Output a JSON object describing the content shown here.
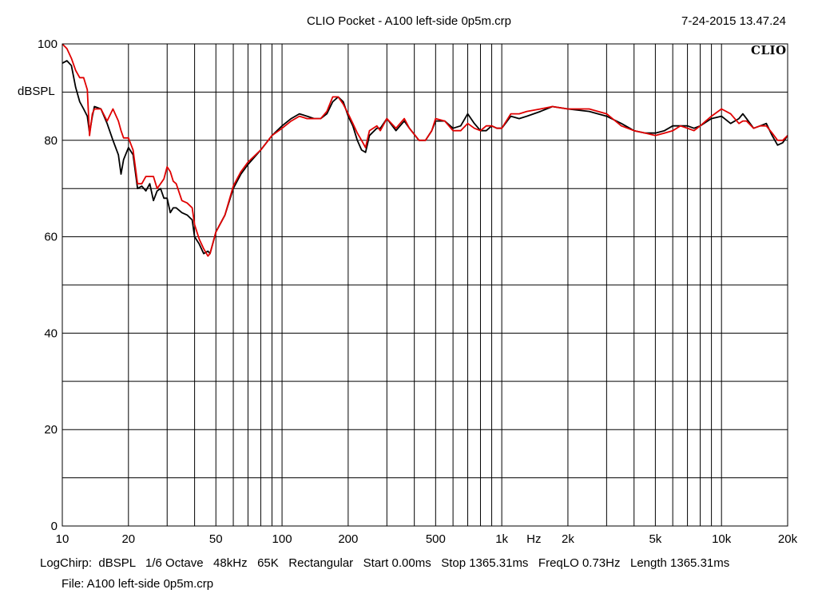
{
  "header": {
    "title": "CLIO Pocket - A100 left-side 0p5m.crp",
    "timestamp": "7-24-2015 13.47.24",
    "brand": "CLIO"
  },
  "footer": {
    "settings": "LogChirp:  dBSPL   1/6 Octave   48kHz   65K   Rectangular   Start 0.00ms   Stop 1365.31ms   FreqLO 0.73Hz   Length 1365.31ms",
    "file": "File: A100 left-side 0p5m.crp"
  },
  "colors": {
    "black_series": "#000000",
    "red_series": "#e00000",
    "grid": "#000000"
  },
  "chart_data": {
    "type": "line",
    "xscale": "log",
    "xlim": [
      10,
      20000
    ],
    "ylim": [
      0,
      100
    ],
    "ylabel": "dBSPL",
    "xlabel": "Hz",
    "grid": true,
    "x_ticks": [
      {
        "v": 10,
        "label": "10"
      },
      {
        "v": 20,
        "label": "20"
      },
      {
        "v": 50,
        "label": "50"
      },
      {
        "v": 100,
        "label": "100"
      },
      {
        "v": 200,
        "label": "200"
      },
      {
        "v": 500,
        "label": "500"
      },
      {
        "v": 1000,
        "label": "1k"
      },
      {
        "v": 2000,
        "label": "2k"
      },
      {
        "v": 5000,
        "label": "5k"
      },
      {
        "v": 10000,
        "label": "10k"
      },
      {
        "v": 20000,
        "label": "20k"
      }
    ],
    "y_ticks": [
      {
        "v": 0,
        "label": "0"
      },
      {
        "v": 20,
        "label": "20"
      },
      {
        "v": 40,
        "label": "40"
      },
      {
        "v": 60,
        "label": "60"
      },
      {
        "v": 80,
        "label": "80"
      },
      {
        "v": 100,
        "label": "100"
      }
    ],
    "series": [
      {
        "color": "#000000",
        "points": [
          [
            10,
            96
          ],
          [
            10.5,
            96.5
          ],
          [
            11,
            95.5
          ],
          [
            11.5,
            91
          ],
          [
            12,
            88
          ],
          [
            12.5,
            86.5
          ],
          [
            13,
            85
          ],
          [
            13.3,
            81.5
          ],
          [
            13.7,
            85
          ],
          [
            14,
            87
          ],
          [
            15,
            86.5
          ],
          [
            16,
            83.5
          ],
          [
            17,
            80
          ],
          [
            18,
            77
          ],
          [
            18.5,
            73
          ],
          [
            19,
            76
          ],
          [
            20,
            78.5
          ],
          [
            21,
            77
          ],
          [
            22,
            70
          ],
          [
            23,
            70.5
          ],
          [
            24,
            69.5
          ],
          [
            25,
            71
          ],
          [
            26,
            67.5
          ],
          [
            27,
            69.5
          ],
          [
            28,
            70
          ],
          [
            29,
            68
          ],
          [
            30,
            68
          ],
          [
            31,
            65
          ],
          [
            32,
            66
          ],
          [
            33,
            66
          ],
          [
            35,
            65
          ],
          [
            37,
            64.5
          ],
          [
            39,
            63.5
          ],
          [
            40,
            60
          ],
          [
            42,
            58.5
          ],
          [
            44,
            56.5
          ],
          [
            46,
            57
          ],
          [
            47,
            56.5
          ],
          [
            48,
            58
          ],
          [
            50,
            61
          ],
          [
            55,
            64.5
          ],
          [
            60,
            70
          ],
          [
            65,
            73
          ],
          [
            70,
            75
          ],
          [
            80,
            78
          ],
          [
            90,
            81
          ],
          [
            100,
            83
          ],
          [
            110,
            84.5
          ],
          [
            120,
            85.5
          ],
          [
            130,
            85
          ],
          [
            140,
            84.5
          ],
          [
            150,
            84.5
          ],
          [
            160,
            85.5
          ],
          [
            170,
            88
          ],
          [
            180,
            89
          ],
          [
            190,
            88
          ],
          [
            200,
            85
          ],
          [
            210,
            83
          ],
          [
            220,
            80
          ],
          [
            230,
            78
          ],
          [
            240,
            77.5
          ],
          [
            250,
            81
          ],
          [
            270,
            82.5
          ],
          [
            280,
            82.5
          ],
          [
            300,
            84.5
          ],
          [
            330,
            82
          ],
          [
            360,
            84
          ],
          [
            380,
            82.5
          ],
          [
            420,
            80
          ],
          [
            450,
            80
          ],
          [
            480,
            82
          ],
          [
            500,
            84
          ],
          [
            550,
            84
          ],
          [
            600,
            82.5
          ],
          [
            650,
            83
          ],
          [
            700,
            85.5
          ],
          [
            750,
            83.5
          ],
          [
            800,
            82
          ],
          [
            850,
            82
          ],
          [
            900,
            83
          ],
          [
            950,
            82.5
          ],
          [
            1000,
            82.5
          ],
          [
            1100,
            85
          ],
          [
            1200,
            84.5
          ],
          [
            1300,
            85
          ],
          [
            1500,
            86
          ],
          [
            1700,
            87
          ],
          [
            2000,
            86.5
          ],
          [
            2500,
            86
          ],
          [
            3000,
            85
          ],
          [
            3500,
            83.5
          ],
          [
            4000,
            82
          ],
          [
            4500,
            81.5
          ],
          [
            5000,
            81.5
          ],
          [
            5500,
            82
          ],
          [
            6000,
            83
          ],
          [
            6500,
            83
          ],
          [
            7000,
            83
          ],
          [
            7500,
            82.5
          ],
          [
            8000,
            83
          ],
          [
            9000,
            84.5
          ],
          [
            10000,
            85
          ],
          [
            11000,
            83.5
          ],
          [
            12000,
            84.5
          ],
          [
            12500,
            85.5
          ],
          [
            13000,
            84.5
          ],
          [
            14000,
            82.5
          ],
          [
            15000,
            83
          ],
          [
            16000,
            83.5
          ],
          [
            17000,
            81
          ],
          [
            18000,
            79
          ],
          [
            19000,
            79.5
          ],
          [
            20000,
            81
          ]
        ]
      },
      {
        "color": "#e00000",
        "points": [
          [
            10,
            100
          ],
          [
            10.5,
            99
          ],
          [
            11,
            97
          ],
          [
            11.5,
            94.5
          ],
          [
            12,
            93
          ],
          [
            12.5,
            93
          ],
          [
            13,
            90.5
          ],
          [
            13.3,
            81
          ],
          [
            13.7,
            85.5
          ],
          [
            14,
            86.5
          ],
          [
            15,
            86.5
          ],
          [
            16,
            84
          ],
          [
            17,
            86.5
          ],
          [
            18,
            84
          ],
          [
            18.5,
            82
          ],
          [
            19,
            80.5
          ],
          [
            20,
            80.5
          ],
          [
            21,
            78
          ],
          [
            22,
            71
          ],
          [
            23,
            71
          ],
          [
            24,
            72.5
          ],
          [
            25,
            72.5
          ],
          [
            26,
            72.5
          ],
          [
            27,
            70
          ],
          [
            28,
            71
          ],
          [
            29,
            72
          ],
          [
            30,
            74.5
          ],
          [
            31,
            73.5
          ],
          [
            32,
            71.5
          ],
          [
            33,
            71
          ],
          [
            35,
            67.5
          ],
          [
            37,
            67
          ],
          [
            39,
            66
          ],
          [
            40,
            62.5
          ],
          [
            42,
            59.5
          ],
          [
            44,
            57.5
          ],
          [
            46,
            56
          ],
          [
            47,
            56.5
          ],
          [
            48,
            58
          ],
          [
            50,
            61
          ],
          [
            55,
            64.5
          ],
          [
            60,
            70.5
          ],
          [
            65,
            73.5
          ],
          [
            70,
            75.5
          ],
          [
            80,
            78
          ],
          [
            90,
            81
          ],
          [
            100,
            82.5
          ],
          [
            110,
            84
          ],
          [
            120,
            85
          ],
          [
            130,
            84.5
          ],
          [
            140,
            84.5
          ],
          [
            150,
            84.5
          ],
          [
            160,
            86
          ],
          [
            170,
            89
          ],
          [
            180,
            89
          ],
          [
            190,
            87.5
          ],
          [
            200,
            85.5
          ],
          [
            210,
            83.5
          ],
          [
            220,
            81.5
          ],
          [
            230,
            80
          ],
          [
            240,
            78.5
          ],
          [
            250,
            82
          ],
          [
            270,
            83
          ],
          [
            280,
            82
          ],
          [
            300,
            84.5
          ],
          [
            330,
            82.5
          ],
          [
            360,
            84.5
          ],
          [
            380,
            82.5
          ],
          [
            420,
            80
          ],
          [
            450,
            80
          ],
          [
            480,
            82
          ],
          [
            500,
            84.5
          ],
          [
            550,
            84
          ],
          [
            600,
            82
          ],
          [
            650,
            82
          ],
          [
            700,
            83.5
          ],
          [
            750,
            82.5
          ],
          [
            800,
            82
          ],
          [
            850,
            83
          ],
          [
            900,
            83
          ],
          [
            950,
            82.5
          ],
          [
            1000,
            82.5
          ],
          [
            1100,
            85.5
          ],
          [
            1200,
            85.5
          ],
          [
            1300,
            86
          ],
          [
            1500,
            86.5
          ],
          [
            1700,
            87
          ],
          [
            2000,
            86.5
          ],
          [
            2500,
            86.5
          ],
          [
            3000,
            85.5
          ],
          [
            3500,
            83
          ],
          [
            4000,
            82
          ],
          [
            4500,
            81.5
          ],
          [
            5000,
            81
          ],
          [
            5500,
            81.5
          ],
          [
            6000,
            82
          ],
          [
            6500,
            83
          ],
          [
            7000,
            82.5
          ],
          [
            7500,
            82
          ],
          [
            8000,
            83
          ],
          [
            9000,
            85
          ],
          [
            10000,
            86.5
          ],
          [
            11000,
            85.5
          ],
          [
            12000,
            83.5
          ],
          [
            12500,
            84
          ],
          [
            13000,
            84
          ],
          [
            14000,
            82.5
          ],
          [
            15000,
            83
          ],
          [
            16000,
            83
          ],
          [
            17000,
            81.5
          ],
          [
            18000,
            80
          ],
          [
            19000,
            80
          ],
          [
            20000,
            81
          ]
        ]
      }
    ]
  }
}
